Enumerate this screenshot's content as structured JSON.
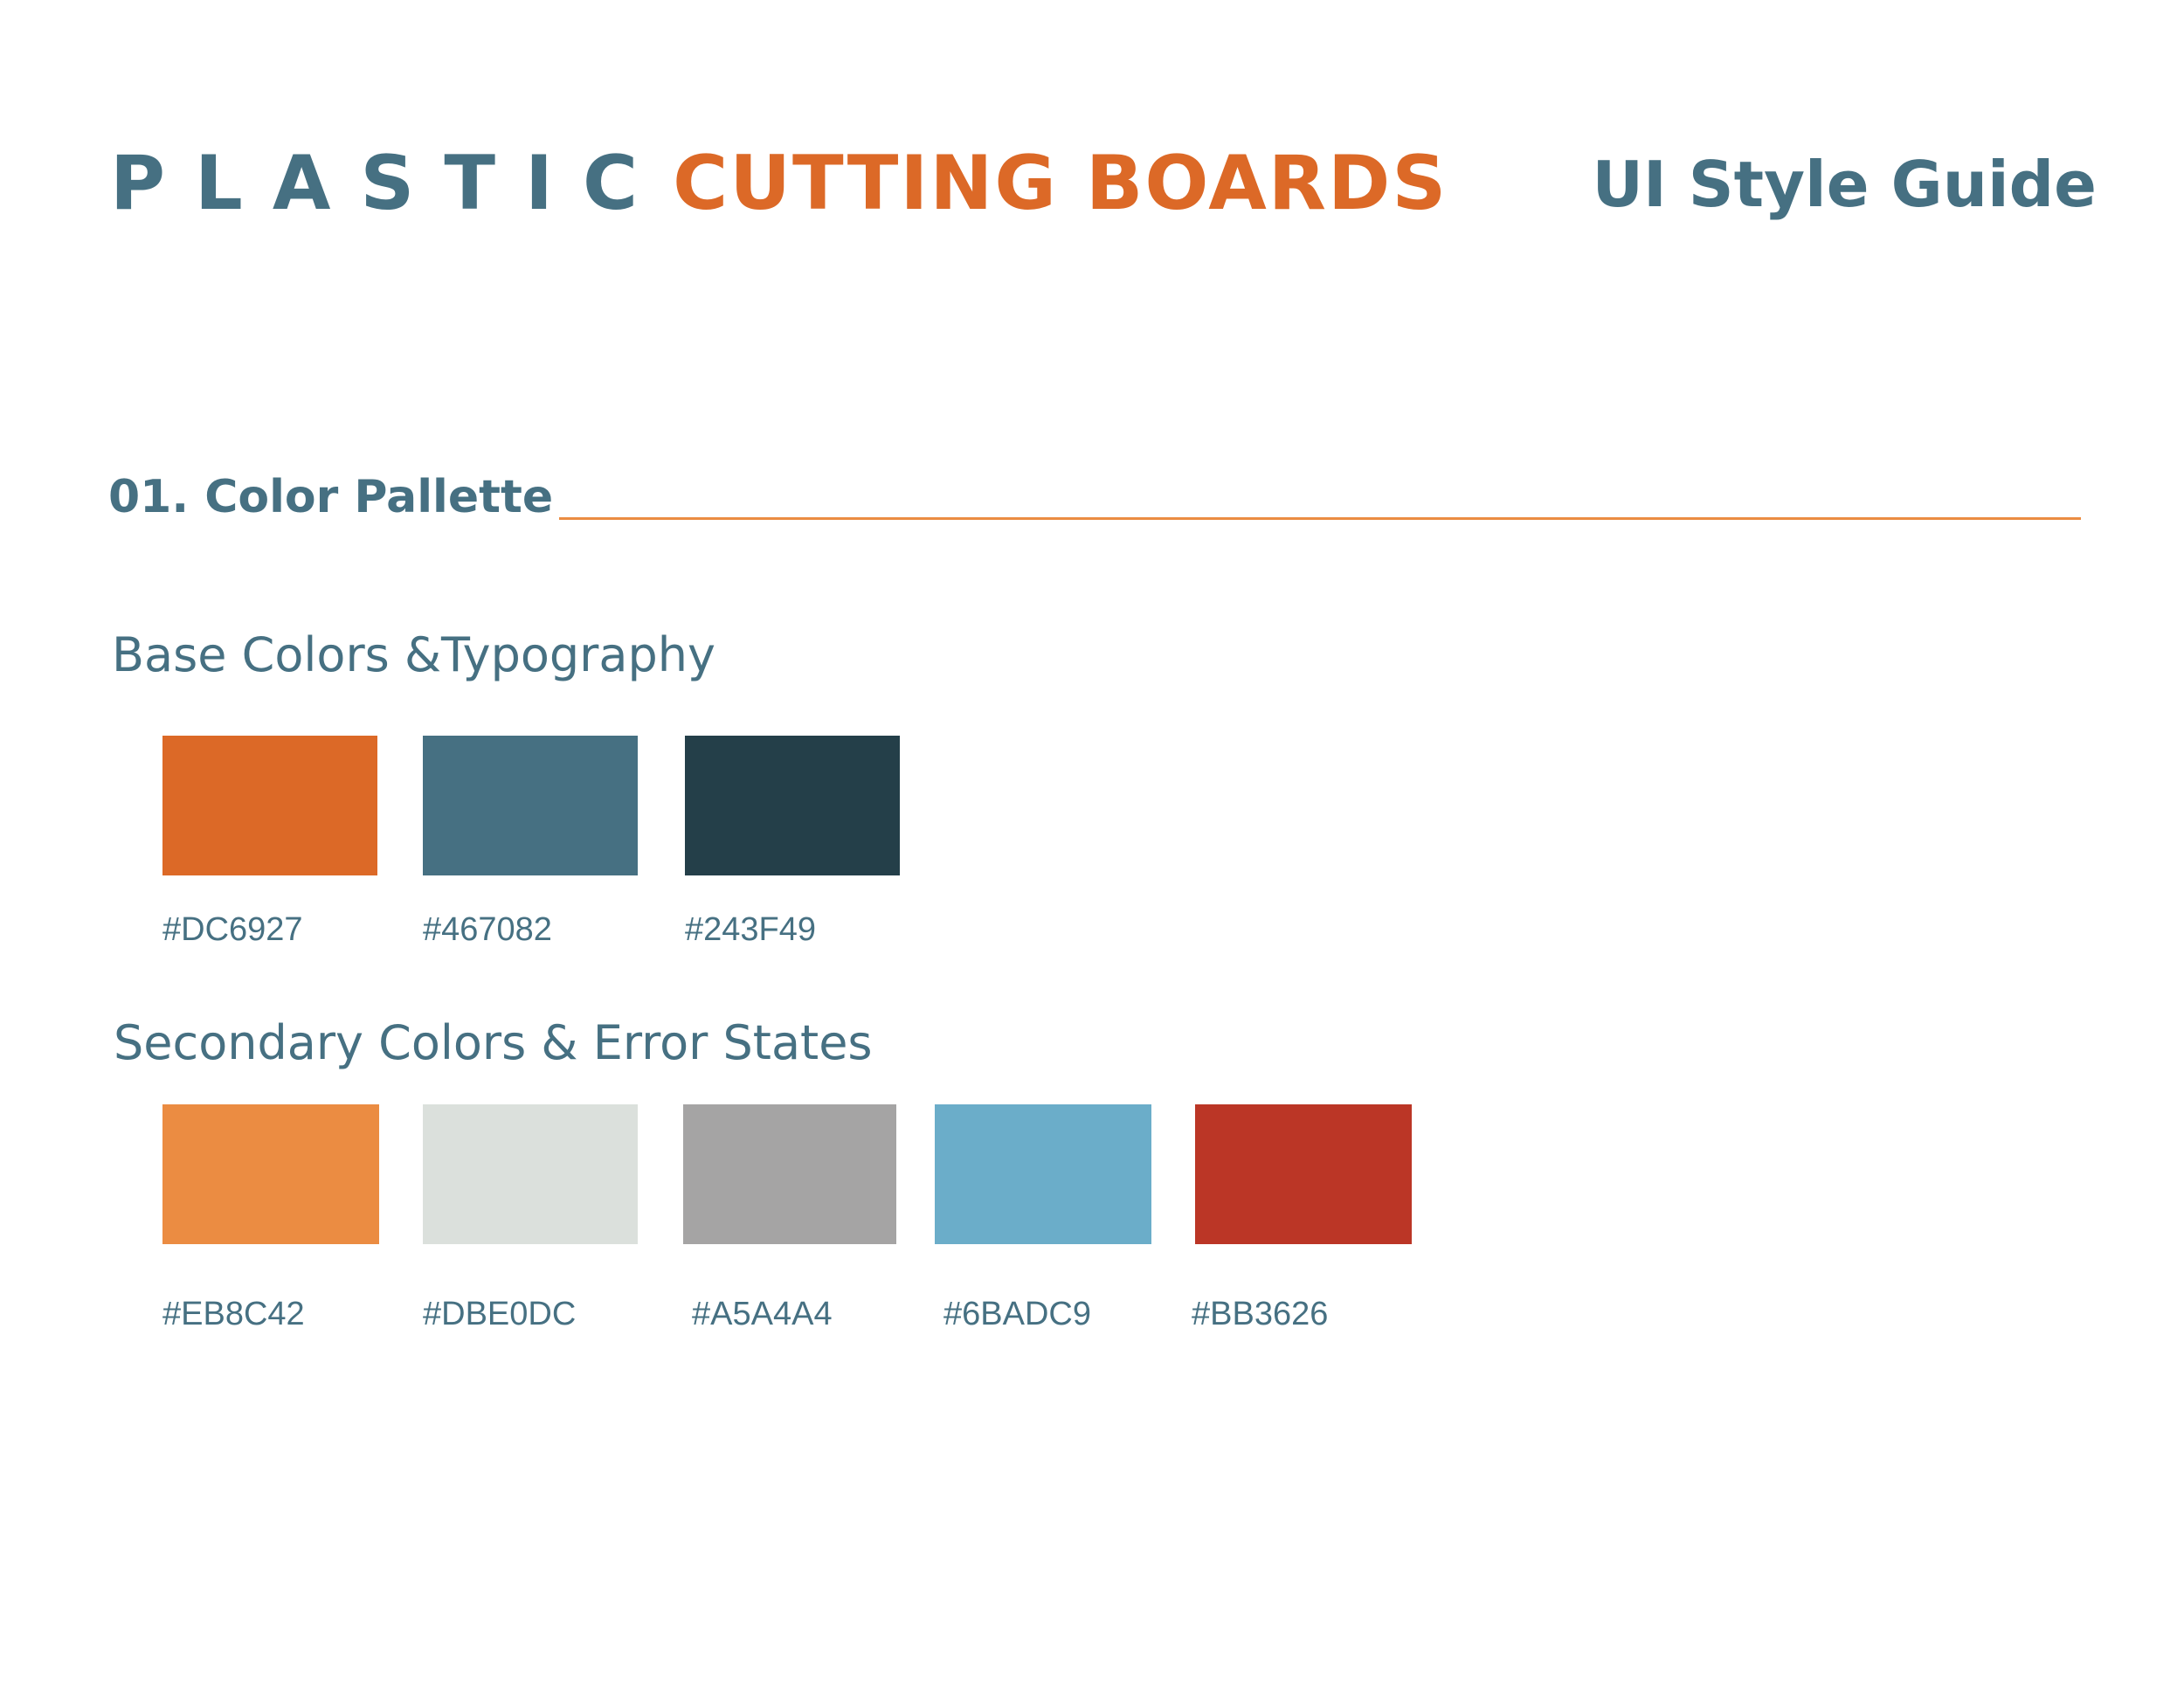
{
  "header": {
    "logo_part1": "PLASTIC",
    "logo_part2": "CUTTING BOARDS",
    "title": "UI Style Guide"
  },
  "section": {
    "title": "01. Color Pallette",
    "rule_color": "#EB8C42"
  },
  "base": {
    "title": "Base Colors &Typography",
    "swatches": [
      {
        "color": "#DC6927",
        "label": "#DC6927"
      },
      {
        "color": "#467082",
        "label": "#467082"
      },
      {
        "color": "#243F49",
        "label": "#243F49"
      }
    ]
  },
  "secondary": {
    "title": "Secondary Colors & Error States",
    "swatches": [
      {
        "color": "#EB8C42",
        "label": "#EB8C42"
      },
      {
        "color": "#DBE0DC",
        "label": "#DBE0DC"
      },
      {
        "color": "#A5A4A4",
        "label": "#A5A4A4"
      },
      {
        "color": "#6BADC9",
        "label": "#6BADC9"
      },
      {
        "color": "#BB3626",
        "label": "#BB3626"
      }
    ]
  }
}
